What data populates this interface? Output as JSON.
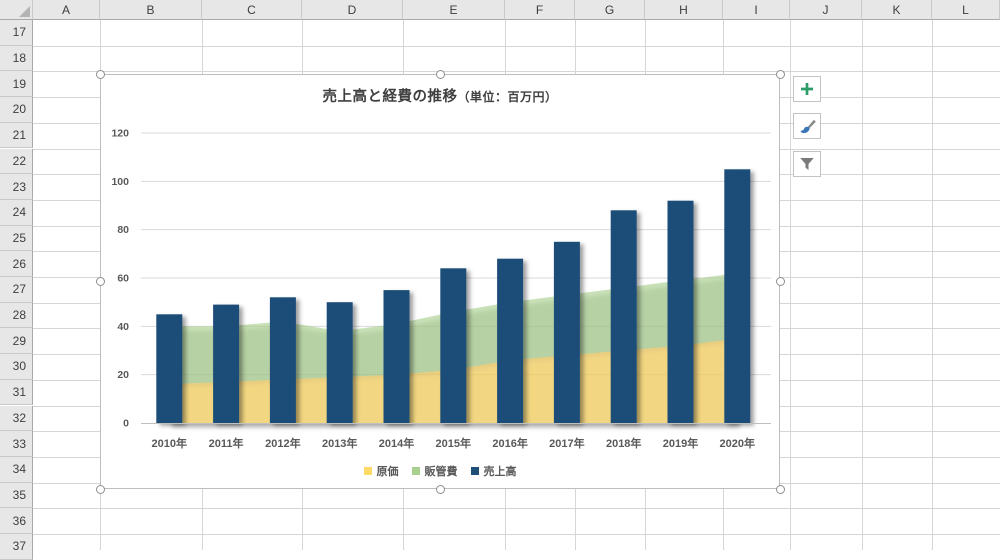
{
  "spreadsheet": {
    "columns": [
      "A",
      "B",
      "C",
      "D",
      "E",
      "F",
      "G",
      "H",
      "I",
      "J",
      "K",
      "L"
    ],
    "rows": [
      "17",
      "18",
      "19",
      "20",
      "21",
      "22",
      "23",
      "24",
      "25",
      "26",
      "27",
      "28",
      "29",
      "30",
      "31",
      "32",
      "33",
      "34",
      "35",
      "36",
      "37"
    ]
  },
  "chart": {
    "title_main": "売上高と経費の推移",
    "title_unit": "（単位：百万円）",
    "legend": [
      {
        "key": "cost",
        "label": "原価",
        "color": "#FFD966"
      },
      {
        "key": "sga",
        "label": "販管費",
        "color": "#A9D08E"
      },
      {
        "key": "sales",
        "label": "売上高",
        "color": "#1F4E79"
      }
    ]
  },
  "chart_data": {
    "type": "combo",
    "title": "売上高と経費の推移（単位：百万円）",
    "categories": [
      "2010年",
      "2011年",
      "2012年",
      "2013年",
      "2014年",
      "2015年",
      "2016年",
      "2017年",
      "2018年",
      "2019年",
      "2020年"
    ],
    "series": [
      {
        "name": "原価",
        "key": "cost",
        "type": "area",
        "stacked": true,
        "color": "#FFD966",
        "values": [
          16,
          17,
          18,
          19,
          20,
          22,
          26,
          28,
          30,
          32,
          35
        ]
      },
      {
        "name": "販管費",
        "key": "sga",
        "type": "area",
        "stacked": true,
        "color": "#A9D08E",
        "values": [
          24,
          23,
          24,
          19,
          21,
          24,
          24,
          25,
          26,
          27,
          27
        ]
      },
      {
        "name": "売上高",
        "key": "sales",
        "type": "bar",
        "stacked": false,
        "color": "#1F4E79",
        "values": [
          45,
          49,
          52,
          50,
          55,
          64,
          68,
          75,
          88,
          92,
          105
        ]
      }
    ],
    "ylim": [
      0,
      120
    ],
    "ytick_step": 20,
    "grid": true,
    "legend_position": "bottom",
    "axis_label_color": "#595959",
    "gridline_color": "#D9D9D9"
  },
  "chart_buttons": [
    {
      "name": "chart-elements-button",
      "icon": "plus-icon",
      "color": "#2E9C68"
    },
    {
      "name": "chart-styles-button",
      "icon": "brush-icon",
      "color": "#3A76B8"
    },
    {
      "name": "chart-filters-button",
      "icon": "funnel-icon",
      "color": "#7A7A7A"
    }
  ]
}
